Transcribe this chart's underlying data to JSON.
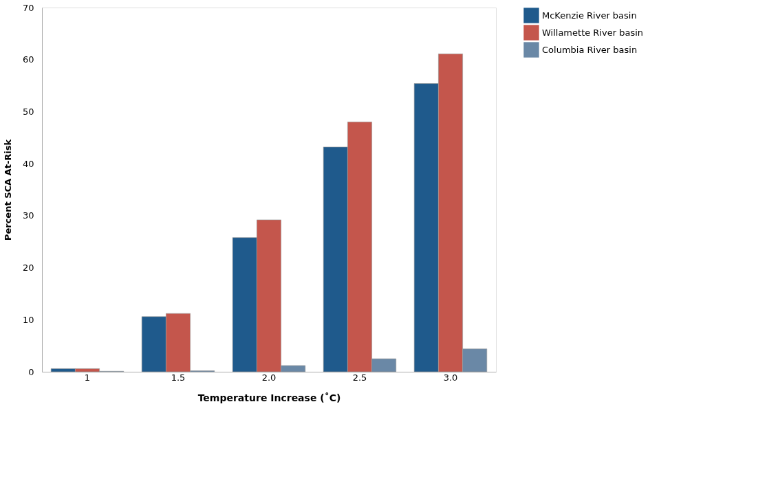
{
  "chart_data": {
    "type": "bar",
    "xlabel": "Temperature Increase (˚C)",
    "ylabel": "Percent SCA At-Risk",
    "categories": [
      "1",
      "1.5",
      "2.0",
      "2.5",
      "3.0"
    ],
    "series": [
      {
        "name": "McKenzie River basin",
        "color": "#1f5a8c",
        "values": [
          0.6,
          10.6,
          25.8,
          43.2,
          55.4
        ]
      },
      {
        "name": "Willamette River basin",
        "color": "#c4564c",
        "values": [
          0.6,
          11.2,
          29.2,
          48.0,
          61.1
        ]
      },
      {
        "name": "Columbia River basin",
        "color": "#6a88a6",
        "values": [
          0.1,
          0.2,
          1.2,
          2.5,
          4.4
        ]
      }
    ],
    "ylim": [
      0,
      70
    ],
    "yticks": [
      0,
      10,
      20,
      30,
      40,
      50,
      60,
      70
    ],
    "grid": false,
    "legend": "right"
  }
}
